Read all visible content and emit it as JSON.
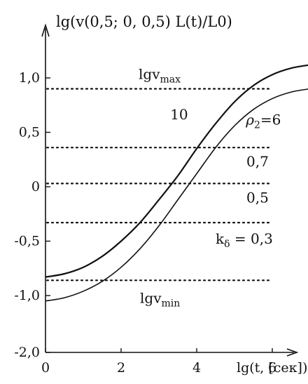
{
  "chart_data": {
    "type": "line",
    "title": "lg(v(0,5; 0, 0,5) L(t)/L0)",
    "xlabel": "lg(t, [сек])",
    "ylabel": "lg(v(0,5; 0, 0,5) L(t)/L0)",
    "xlim": [
      0,
      7.5
    ],
    "x_ticks": [
      "0",
      "2",
      "4",
      "6"
    ],
    "y_ticks": [
      "1,0",
      "0,5",
      "0",
      "-0,5",
      "-1,0",
      "-2,0"
    ],
    "grid": false,
    "series": [
      {
        "name": "10",
        "x": [
          0,
          0.5,
          1,
          1.5,
          2,
          2.5,
          3,
          3.5,
          4,
          4.5,
          5,
          5.5,
          6,
          6.5,
          7,
          7.5
        ],
        "y": [
          -0.83,
          -0.8,
          -0.74,
          -0.64,
          -0.5,
          -0.33,
          -0.12,
          0.1,
          0.35,
          0.58,
          0.78,
          0.93,
          1.03,
          1.09,
          1.12,
          1.14
        ]
      },
      {
        "name": "ρ2=6",
        "x": [
          0,
          0.5,
          1,
          1.5,
          2,
          2.5,
          3,
          3.5,
          4,
          4.5,
          5,
          5.5,
          6,
          6.5,
          7,
          7.5
        ],
        "y": [
          -1.05,
          -1.02,
          -0.96,
          -0.87,
          -0.74,
          -0.57,
          -0.36,
          -0.12,
          0.12,
          0.36,
          0.56,
          0.71,
          0.81,
          0.87,
          0.9,
          0.92
        ]
      }
    ],
    "reference_lines": [
      {
        "y": 0.9,
        "label": "lg v_max",
        "text": "lgv",
        "sub": "max"
      },
      {
        "y": 0.36,
        "label": "0,7",
        "text": "0,7",
        "sub": ""
      },
      {
        "y": 0.03,
        "label": "0,5",
        "text": "0,5",
        "sub": ""
      },
      {
        "y": -0.33,
        "label": "kδ = 0,3",
        "text": "k",
        "sub": "δ",
        "after": " = 0,3"
      },
      {
        "y": -0.86,
        "label": "lg v_min",
        "text": "lgv",
        "sub": "min"
      }
    ],
    "curve_labels": [
      {
        "text": "10",
        "x": 3.3,
        "y": 0.62
      },
      {
        "text": "ρ",
        "sub": "2",
        "after": "=6",
        "x": 5.3,
        "y": 0.57
      }
    ]
  }
}
